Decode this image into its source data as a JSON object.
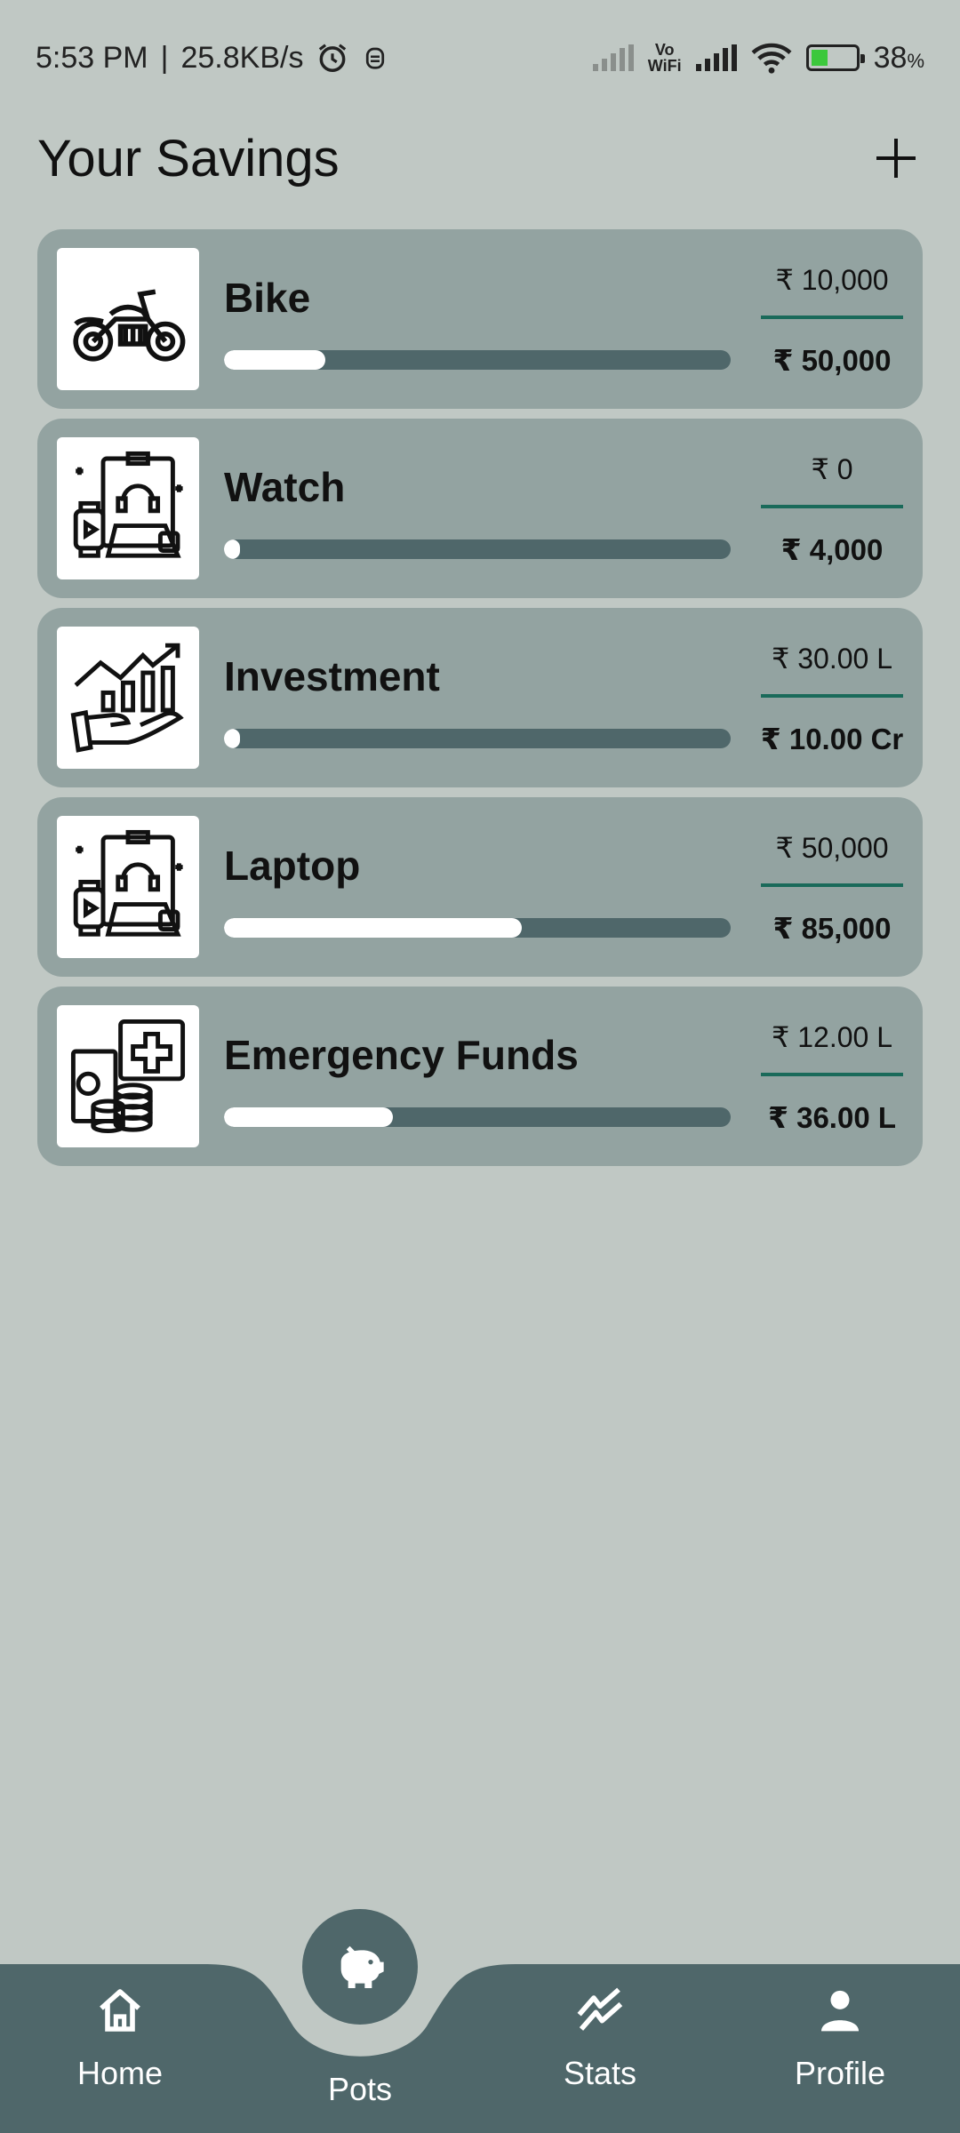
{
  "status_bar": {
    "time": "5:53 PM",
    "speed": "25.8KB/s",
    "vowifi_top": "Vo",
    "vowifi_bottom": "WiFi",
    "battery": "38",
    "battery_unit": "%",
    "icons": [
      "alarm-icon",
      "notification-icon",
      "signal-icon",
      "wifi-icon",
      "battery-icon"
    ]
  },
  "header": {
    "title": "Your Savings",
    "add_icon": "plus-icon"
  },
  "cards": [
    {
      "name": "Bike",
      "saved": "₹ 10,000",
      "target": "₹ 50,000",
      "progress": 0.2,
      "icon": "motorcycle-icon"
    },
    {
      "name": "Watch",
      "saved": "₹ 0",
      "target": "₹ 4,000",
      "progress": 0.0,
      "icon": "gadgets-icon"
    },
    {
      "name": "Investment",
      "saved": "₹ 30.00 L",
      "target": "₹ 10.00 Cr",
      "progress": 0.03,
      "icon": "investment-growth-icon"
    },
    {
      "name": "Laptop",
      "saved": "₹ 50,000",
      "target": "₹ 85,000",
      "progress": 0.588,
      "icon": "gadgets-icon"
    },
    {
      "name": "Emergency Funds",
      "saved": "₹ 12.00 L",
      "target": "₹ 36.00 L",
      "progress": 0.333,
      "icon": "emergency-funds-icon"
    }
  ],
  "bottom_nav": {
    "items": [
      {
        "label": "Home",
        "icon": "home-icon"
      },
      {
        "label": "Pots",
        "icon": "piggy-bank-icon",
        "active": true
      },
      {
        "label": "Stats",
        "icon": "stats-icon"
      },
      {
        "label": "Profile",
        "icon": "profile-icon"
      }
    ]
  },
  "colors": {
    "background": "#c0c8c4",
    "card": "#93a3a1",
    "accent_dark": "#4f676a",
    "divider": "#1a6a5a"
  }
}
